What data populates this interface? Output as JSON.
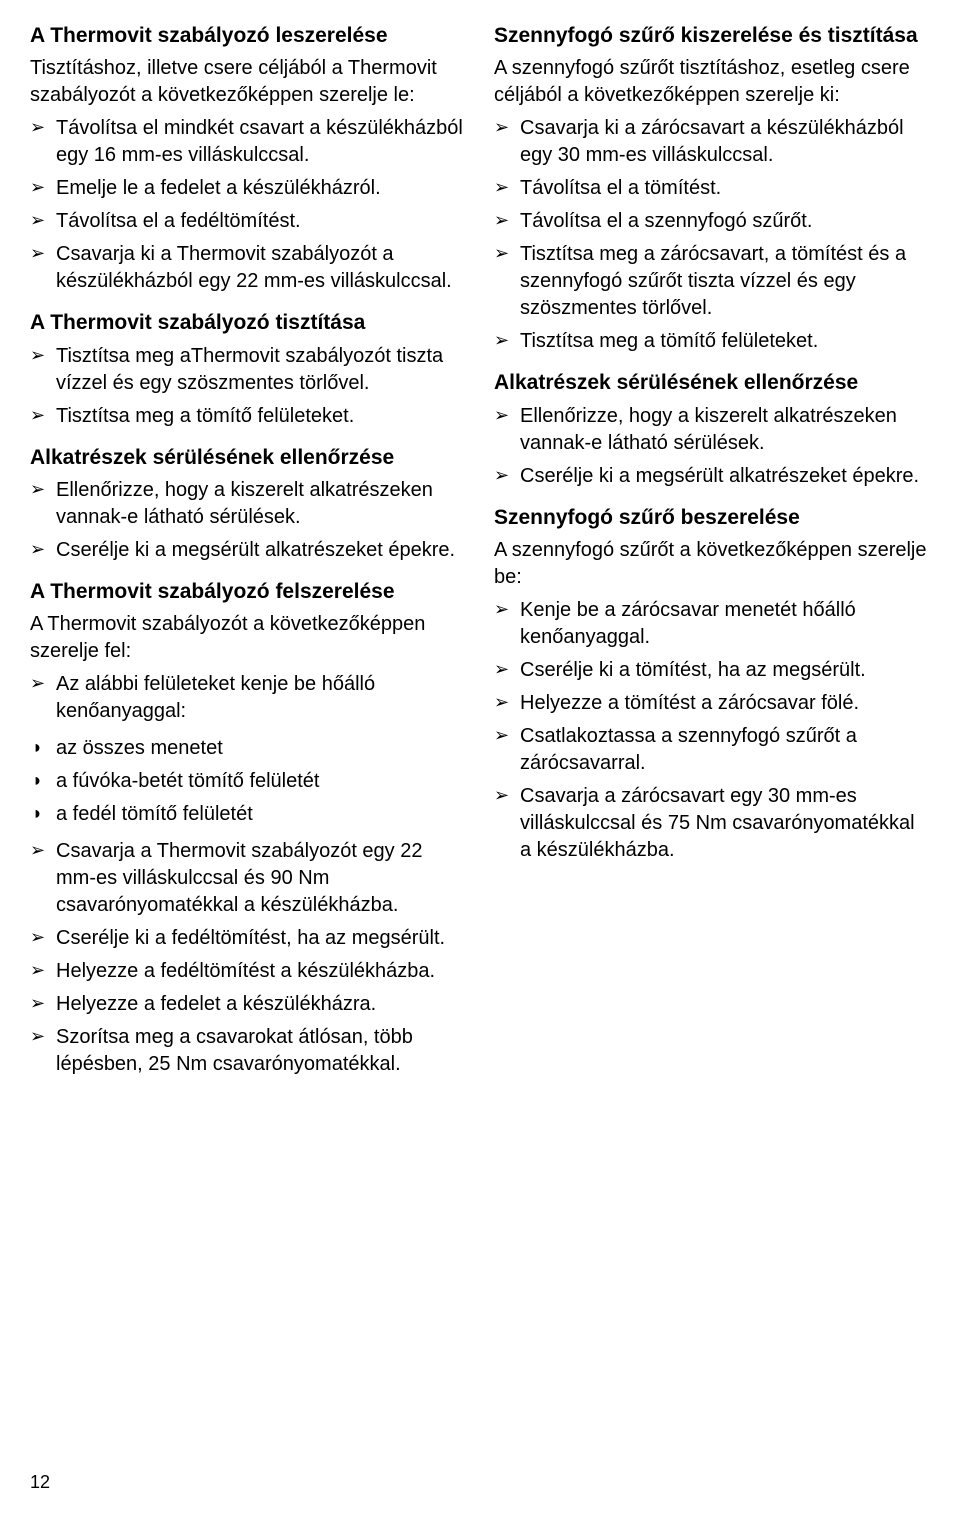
{
  "page_number": "12",
  "left": {
    "s1": {
      "heading": "A Thermovit szabályozó leszerelése",
      "intro": "Tisztításhoz, illetve csere céljából a Thermovit szabályozót a következőképpen szerelje le:",
      "items": [
        "Távolítsa el mindkét csavart a készülékházból egy 16 mm-es villáskulccsal.",
        "Emelje le a fedelet a készülékházról.",
        "Távolítsa el a fedéltömítést.",
        "Csavarja ki a Thermovit szabályozót a készülékházból egy 22 mm-es villáskulccsal."
      ]
    },
    "s2": {
      "heading": "A Thermovit szabályozó tisztítása",
      "items": [
        "Tisztítsa meg aThermovit szabályozót tiszta vízzel és egy szöszmentes törlővel.",
        "Tisztítsa meg a tömítő felületeket."
      ]
    },
    "s3": {
      "heading": "Alkatrészek sérülésének ellenőrzése",
      "items": [
        "Ellenőrizze, hogy a kiszerelt alkatrészeken vannak-e látható sérülések.",
        "Cserélje ki a megsérült alkatrészeket épekre."
      ]
    },
    "s4": {
      "heading": "A Thermovit szabályozó felszerelése",
      "intro": "A Thermovit szabályozót a következőképpen szerelje fel:",
      "items1": [
        "Az alábbi felületeket kenje be hőálló kenőanyaggal:"
      ],
      "sub": [
        "az összes menetet",
        "a fúvóka-betét tömítő felületét",
        "a fedél tömítő felületét"
      ],
      "items2": [
        "Csavarja a Thermovit szabályozót egy 22 mm-es villáskulccsal és 90 Nm csavarónyomatékkal a készülékházba.",
        "Cserélje ki a fedéltömítést, ha az megsérült.",
        "Helyezze a fedéltömítést a készülékházba.",
        "Helyezze a fedelet a készülékházra.",
        "Szorítsa meg a csavarokat átlósan, több lépésben, 25 Nm csavarónyomatékkal."
      ]
    }
  },
  "right": {
    "s1": {
      "heading": "Szennyfogó szűrő kiszerelése és tisztítása",
      "intro": "A szennyfogó szűrőt tisztításhoz, esetleg csere céljából a következőképpen szerelje ki:",
      "items": [
        "Csavarja ki a zárócsavart a készülékházból egy 30 mm-es villáskulccsal.",
        "Távolítsa el a tömítést.",
        "Távolítsa el a szennyfogó szűrőt.",
        "Tisztítsa meg a zárócsavart, a tömítést és a szennyfogó szűrőt tiszta vízzel és egy szöszmentes törlővel.",
        "Tisztítsa meg a tömítő felületeket."
      ]
    },
    "s2": {
      "heading": "Alkatrészek sérülésének ellenőrzése",
      "items": [
        "Ellenőrizze, hogy a kiszerelt alkatrészeken vannak-e látható sérülések.",
        "Cserélje ki a megsérült alkatrészeket épekre."
      ]
    },
    "s3": {
      "heading": "Szennyfogó szűrő beszerelése",
      "intro": "A szennyfogó szűrőt a következőképpen szerelje be:",
      "items": [
        "Kenje be a zárócsavar menetét hőálló kenőanyaggal.",
        "Cserélje ki a tömítést, ha az megsérült.",
        "Helyezze a tömítést a zárócsavar fölé.",
        "Csatlakoztassa a szennyfogó szűrőt a zárócsavarral.",
        "Csavarja a zárócsavart egy 30 mm-es villáskulccsal és 75 Nm csavarónyomatékkal a készülékházba."
      ]
    }
  }
}
